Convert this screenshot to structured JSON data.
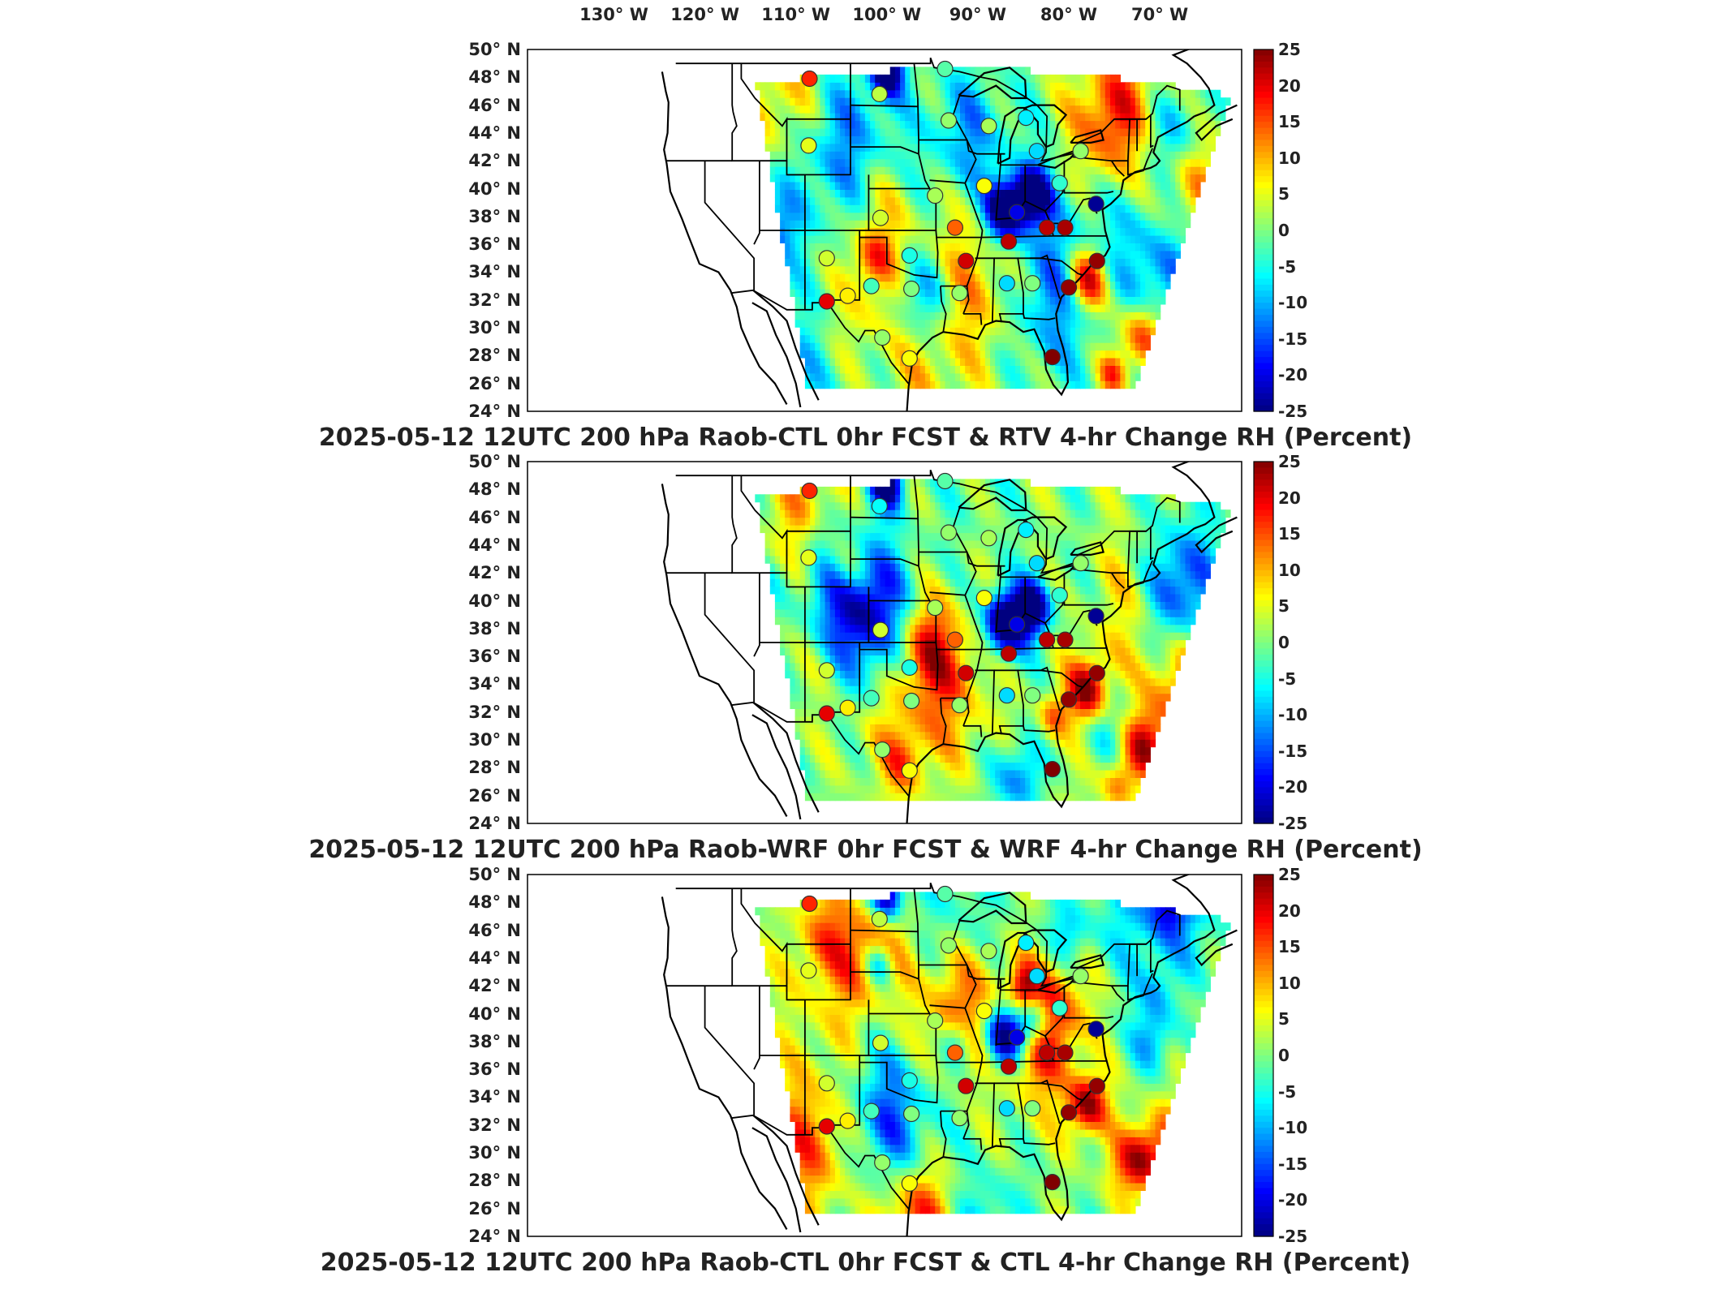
{
  "longitude_labels": [
    "130° W",
    "120° W",
    "110° W",
    "100° W",
    "90° W",
    "80° W",
    "70° W"
  ],
  "latitude_labels": [
    "50° N",
    "48° N",
    "46° N",
    "44° N",
    "42° N",
    "40° N",
    "38° N",
    "36° N",
    "34° N",
    "32° N",
    "30° N",
    "28° N",
    "26° N",
    "24° N"
  ],
  "colorbar": {
    "ticks": [
      "25",
      "20",
      "15",
      "10",
      "5",
      "0",
      "-5",
      "-10",
      "-15",
      "-20",
      "-25"
    ],
    "min": -25,
    "max": 25,
    "colormap": "jet",
    "colors": [
      "#00007f",
      "#0000ff",
      "#007fff",
      "#00ffff",
      "#7fff7f",
      "#ffff00",
      "#ff7f00",
      "#ff0000",
      "#7f0000"
    ]
  },
  "panels": [
    {
      "title": "2025-05-12 12UTC 200 hPa Raob-CTL 0hr FCST & RTV 4-hr Change RH (Percent)"
    },
    {
      "title": "2025-05-12 12UTC 200 hPa Raob-WRF 0hr FCST & WRF 4-hr Change RH (Percent)"
    },
    {
      "title": "2025-05-12 12UTC 200 hPa Raob-CTL 0hr FCST & CTL 4-hr Change RH (Percent)"
    }
  ],
  "stations": [
    {
      "lon": -108.5,
      "lat": 47.9,
      "v": [
        17,
        17,
        17
      ]
    },
    {
      "lon": -100.8,
      "lat": 46.8,
      "v": [
        3,
        -6,
        3
      ]
    },
    {
      "lon": -93.6,
      "lat": 48.6,
      "v": [
        -2,
        -2,
        -2
      ]
    },
    {
      "lon": -93.2,
      "lat": 44.9,
      "v": [
        1,
        1,
        1
      ]
    },
    {
      "lon": -88.8,
      "lat": 44.5,
      "v": [
        2,
        2,
        2
      ]
    },
    {
      "lon": -84.7,
      "lat": 45.1,
      "v": [
        -7,
        -7,
        -7
      ]
    },
    {
      "lon": -83.5,
      "lat": 42.7,
      "v": [
        -8,
        -8,
        -8
      ]
    },
    {
      "lon": -78.7,
      "lat": 42.7,
      "v": [
        1,
        1,
        1
      ]
    },
    {
      "lon": -108.6,
      "lat": 43.1,
      "v": [
        5,
        5,
        5
      ]
    },
    {
      "lon": -89.3,
      "lat": 40.2,
      "v": [
        6,
        6,
        6
      ]
    },
    {
      "lon": -81.0,
      "lat": 40.4,
      "v": [
        -4,
        -4,
        -4
      ]
    },
    {
      "lon": -77.0,
      "lat": 38.9,
      "v": [
        -24,
        -24,
        -24
      ]
    },
    {
      "lon": -85.7,
      "lat": 38.3,
      "v": [
        -20,
        -20,
        -20
      ]
    },
    {
      "lon": -94.7,
      "lat": 39.5,
      "v": [
        2,
        2,
        2
      ]
    },
    {
      "lon": -100.7,
      "lat": 37.9,
      "v": [
        4,
        4,
        4
      ]
    },
    {
      "lon": -92.5,
      "lat": 37.2,
      "v": [
        14,
        14,
        14
      ]
    },
    {
      "lon": -86.6,
      "lat": 36.2,
      "v": [
        22,
        22,
        22
      ]
    },
    {
      "lon": -82.4,
      "lat": 37.2,
      "v": [
        22,
        22,
        22
      ]
    },
    {
      "lon": -80.4,
      "lat": 37.2,
      "v": [
        23,
        23,
        23
      ]
    },
    {
      "lon": -76.9,
      "lat": 34.8,
      "v": [
        24,
        24,
        24
      ]
    },
    {
      "lon": -91.3,
      "lat": 34.8,
      "v": [
        21,
        21,
        21
      ]
    },
    {
      "lon": -97.5,
      "lat": 35.2,
      "v": [
        -5,
        -5,
        -5
      ]
    },
    {
      "lon": -106.6,
      "lat": 35.0,
      "v": [
        4,
        4,
        4
      ]
    },
    {
      "lon": -101.7,
      "lat": 33.0,
      "v": [
        -3,
        -3,
        -3
      ]
    },
    {
      "lon": -104.3,
      "lat": 32.3,
      "v": [
        7,
        7,
        7
      ]
    },
    {
      "lon": -106.6,
      "lat": 31.9,
      "v": [
        20,
        20,
        20
      ]
    },
    {
      "lon": -97.3,
      "lat": 32.8,
      "v": [
        0,
        0,
        0
      ]
    },
    {
      "lon": -92.0,
      "lat": 32.5,
      "v": [
        1,
        1,
        1
      ]
    },
    {
      "lon": -86.8,
      "lat": 33.2,
      "v": [
        -8,
        -8,
        -8
      ]
    },
    {
      "lon": -84.0,
      "lat": 33.2,
      "v": [
        0,
        0,
        0
      ]
    },
    {
      "lon": -80.0,
      "lat": 32.9,
      "v": [
        24,
        24,
        24
      ]
    },
    {
      "lon": -81.8,
      "lat": 27.9,
      "v": [
        25,
        25,
        25
      ]
    },
    {
      "lon": -97.5,
      "lat": 27.8,
      "v": [
        6,
        6,
        6
      ]
    },
    {
      "lon": -100.5,
      "lat": 29.3,
      "v": [
        1,
        1,
        1
      ]
    }
  ]
}
